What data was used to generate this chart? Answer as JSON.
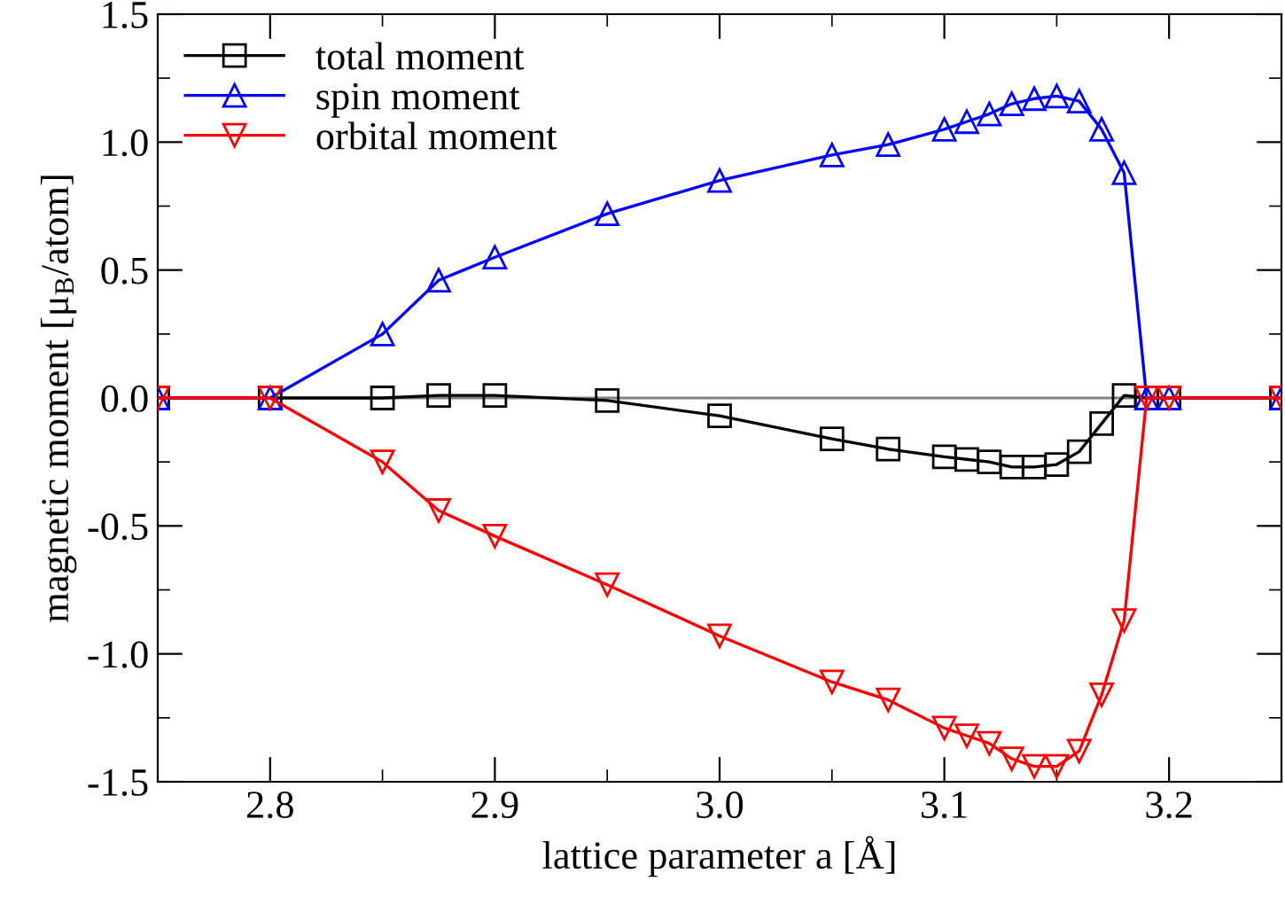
{
  "chart_data": {
    "type": "line",
    "xlabel": "lattice parameter a [Å]",
    "ylabel": "magnetic moment [μ$_{B}$/atom]",
    "x": [
      2.75,
      2.8,
      2.85,
      2.875,
      2.9,
      2.95,
      3.0,
      3.05,
      3.075,
      3.1,
      3.11,
      3.12,
      3.13,
      3.14,
      3.15,
      3.16,
      3.17,
      3.18,
      3.19,
      3.2,
      3.25
    ],
    "series": [
      {
        "name": "total moment",
        "color": "#000000",
        "marker": "square",
        "values": [
          0,
          0,
          0.0,
          0.01,
          0.01,
          -0.01,
          -0.07,
          -0.16,
          -0.2,
          -0.23,
          -0.24,
          -0.25,
          -0.27,
          -0.27,
          -0.26,
          -0.21,
          -0.1,
          0.01,
          0,
          0,
          0
        ]
      },
      {
        "name": "spin moment",
        "color": "#0000ff",
        "marker": "triangle",
        "values": [
          0,
          0,
          0.25,
          0.46,
          0.55,
          0.72,
          0.85,
          0.95,
          0.99,
          1.05,
          1.08,
          1.11,
          1.15,
          1.17,
          1.18,
          1.16,
          1.05,
          0.88,
          0,
          0,
          0
        ]
      },
      {
        "name": "orbital moment",
        "color": "#ff0000",
        "marker": "triangle_down",
        "values": [
          0,
          0,
          -0.25,
          -0.44,
          -0.54,
          -0.73,
          -0.93,
          -1.11,
          -1.18,
          -1.29,
          -1.32,
          -1.35,
          -1.41,
          -1.44,
          -1.44,
          -1.38,
          -1.16,
          -0.87,
          0,
          0,
          0
        ]
      }
    ],
    "xlim": [
      2.75,
      3.25
    ],
    "xticks": [
      2.8,
      2.9,
      {
        "value": 3.0,
        "label": "3.0"
      },
      3.1,
      3.2
    ],
    "ylim": [
      -1.5,
      1.5
    ],
    "yticks": [
      {
        "value": -1.5,
        "label": "-1.5"
      },
      {
        "value": -1,
        "label": "-1.0"
      },
      {
        "value": -0.5,
        "label": "-0.5"
      },
      {
        "value": 0,
        "label": "0.0"
      },
      {
        "value": 0.5,
        "label": "0.5"
      },
      {
        "value": 1,
        "label": "1.0"
      },
      {
        "value": 1.5,
        "label": "1.5"
      }
    ],
    "ref_lines": [
      {
        "axis": "y",
        "value": 0,
        "color": "#808080"
      }
    ],
    "grid": false,
    "legend": "top left",
    "line_style": "solid"
  }
}
